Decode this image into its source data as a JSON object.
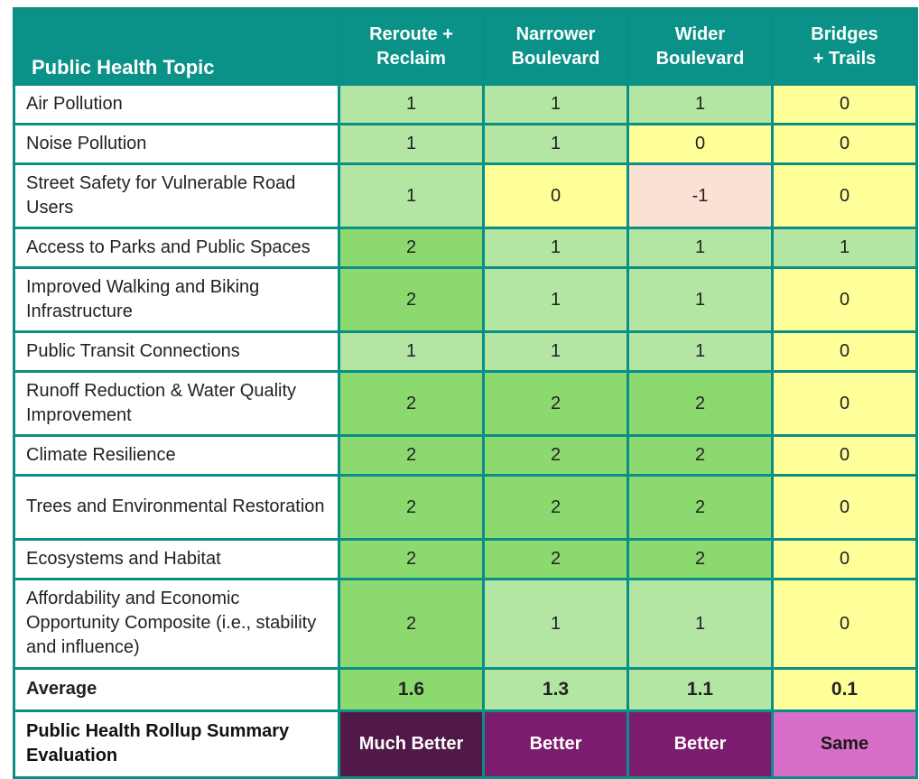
{
  "table": {
    "headers": [
      {
        "lines": [
          "Public Health Topic"
        ]
      },
      {
        "lines": [
          "Reroute +",
          "Reclaim"
        ]
      },
      {
        "lines": [
          "Narrower",
          "Boulevard"
        ]
      },
      {
        "lines": [
          "Wider",
          "Boulevard"
        ]
      },
      {
        "lines": [
          "Bridges",
          "+ Trails"
        ]
      }
    ],
    "rows": [
      {
        "topic": "Air Pollution",
        "values": [
          "1",
          "1",
          "1",
          "0"
        ]
      },
      {
        "topic": "Noise Pollution",
        "values": [
          "1",
          "1",
          "0",
          "0"
        ]
      },
      {
        "topic": "Street Safety for Vulnerable Road Users",
        "values": [
          "1",
          "0",
          "-1",
          "0"
        ]
      },
      {
        "topic": "Access to Parks and Public Spaces",
        "values": [
          "2",
          "1",
          "1",
          "1"
        ]
      },
      {
        "topic": "Improved Walking and Biking Infrastructure",
        "values": [
          "2",
          "1",
          "1",
          "0"
        ]
      },
      {
        "topic": "Public Transit Connections",
        "values": [
          "1",
          "1",
          "1",
          "0"
        ]
      },
      {
        "topic": "Runoff Reduction & Water Quality Improvement",
        "values": [
          "2",
          "2",
          "2",
          "0"
        ]
      },
      {
        "topic": "Climate Resilience",
        "values": [
          "2",
          "2",
          "2",
          "0"
        ]
      },
      {
        "topic": "Trees and Environmental Restoration",
        "values": [
          "2",
          "2",
          "2",
          "0"
        ]
      },
      {
        "topic": "Ecosystems and Habitat",
        "values": [
          "2",
          "2",
          "2",
          "0"
        ]
      },
      {
        "topic": "Affordability and Economic Opportunity Composite (i.e., stability and influence)",
        "values": [
          "2",
          "1",
          "1",
          "0"
        ]
      }
    ],
    "average": {
      "label": "Average",
      "values": [
        "1.6",
        "1.3",
        "1.1",
        "0.1"
      ]
    },
    "rollup": {
      "label": "Public Health Rollup Summary Evaluation",
      "values": [
        "Much Better",
        "Better",
        "Better",
        "Same"
      ]
    }
  },
  "colors": {
    "header_teal": "#0a9289",
    "score_2": "#8cd96f",
    "score_1": "#b3e6a2",
    "score_0": "#ffff99",
    "score_minus_1": "#fbe0d4",
    "much_better": "#511948",
    "better": "#7c1c6e",
    "same": "#d86ec9"
  }
}
